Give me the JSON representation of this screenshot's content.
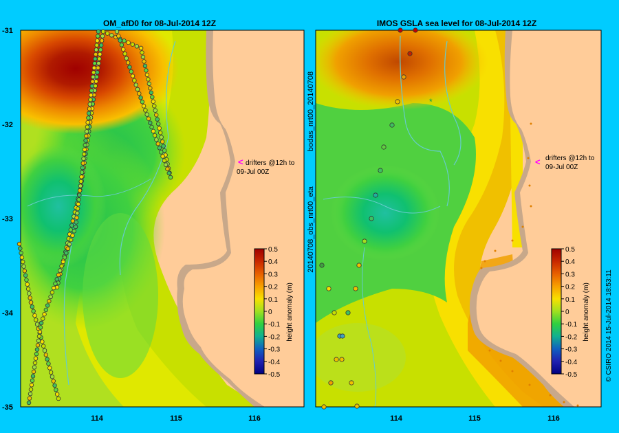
{
  "left_panel": {
    "title": "OM_afD0 for 08-Jul-2014 12Z",
    "y_ticks": [
      "-31",
      "-32",
      "-33",
      "-34",
      "-35"
    ],
    "x_ticks": [
      "114",
      "115",
      "116"
    ],
    "drifter_note_line1": "drifters @12h to",
    "drifter_note_line2": "09-Jul 00Z"
  },
  "right_panel": {
    "title": "IMOS  GSLA sea level  for 08-Jul-2014 12Z",
    "x_ticks": [
      "114",
      "115",
      "116"
    ],
    "drifter_note_line1": "drifters @12h to",
    "drifter_note_line2": "09-Jul 00Z",
    "side_label_top": "bodas_nrt00_20140708",
    "side_label_bottom": "20140708_obs_nrt00_eta"
  },
  "colorbar": {
    "label": "height anomaly (m)",
    "ticks": [
      "0.5",
      "0.4",
      "0.3",
      "0.2",
      "0.1",
      "0",
      "-0.1",
      "-0.2",
      "-0.3",
      "-0.4",
      "-0.5"
    ]
  },
  "credit": "© CSIRO 2014   15-Jul-2014 18:53:11",
  "colors": {
    "background": "#00ccff",
    "land": "#ffcc99",
    "shelf": "#c8a88a",
    "coast_line": "#66cccc",
    "drifter_arrow": "#ff00ff"
  },
  "chart_data": {
    "type": "heatmap",
    "field": "sea level height anomaly (m)",
    "lon_range": [
      113.0,
      116.6
    ],
    "lat_range": [
      -35.0,
      -31.0
    ],
    "color_range": [
      -0.5,
      0.5
    ],
    "features": {
      "left": [
        {
          "feature": "warm eddy",
          "lon": 113.7,
          "lat": -31.2,
          "peak": 0.5
        },
        {
          "feature": "cool eddy",
          "lon": 113.3,
          "lat": -32.9,
          "peak": -0.15
        },
        {
          "feature": "cool band",
          "lon": 114.2,
          "lat": -32.6,
          "peak": -0.05
        }
      ],
      "right": [
        {
          "feature": "warm eddy",
          "lon": 114.0,
          "lat": -31.2,
          "peak": 0.35
        },
        {
          "feature": "cool eddy",
          "lon": 113.8,
          "lat": -33.0,
          "peak": -0.15
        },
        {
          "feature": "coastal warm band",
          "lon": 115.7,
          "lat": -33.8,
          "peak": 0.3
        }
      ]
    }
  }
}
